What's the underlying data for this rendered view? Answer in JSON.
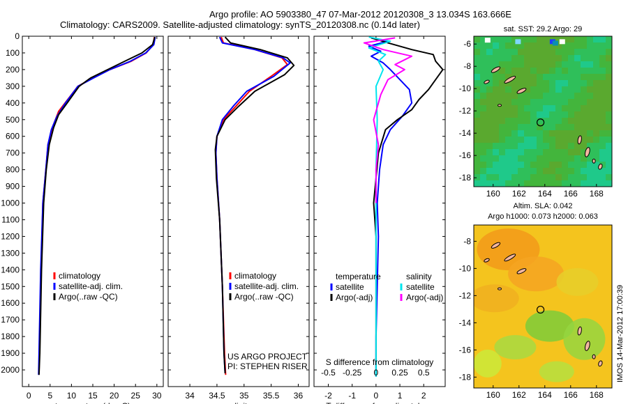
{
  "title": {
    "line1": "Argo profile: AO 5903380_47 07-Mar-2012 20120308_3 13.034S 163.666E",
    "line2": "Climatology: CARS2009. Satellite-adjusted climatology: synTS_20120308.nc (0.14d later)"
  },
  "colors": {
    "climatology": "#ff0000",
    "satellite": "#0000ff",
    "argo": "#000000",
    "sal_satellite": "#00e5ee",
    "sal_argo": "#ff00ff"
  },
  "chart_data": [
    {
      "type": "line",
      "xlabel": "temperature (deg C)",
      "xlim": [
        -1.5,
        31.5
      ],
      "xticks": [
        0,
        5,
        10,
        15,
        20,
        25,
        30
      ],
      "ylim": [
        2100,
        0
      ],
      "yticks": [
        0,
        100,
        200,
        300,
        400,
        500,
        600,
        700,
        800,
        900,
        1000,
        1100,
        1200,
        1300,
        1400,
        1500,
        1600,
        1700,
        1800,
        1900,
        2000
      ],
      "legend": [
        "climatology",
        "satellite-adj. clim.",
        "Argo(..raw -QC)"
      ],
      "legend_position": "center-left",
      "series": [
        {
          "name": "climatology",
          "color": "#ff0000",
          "x": [
            29.4,
            29.2,
            27.5,
            24,
            19,
            15,
            11.5,
            8.5,
            7,
            5.5,
            4.5,
            4,
            3.3,
            2.9,
            2.5,
            2.4
          ],
          "y": [
            5,
            50,
            100,
            150,
            200,
            250,
            300,
            400,
            450,
            550,
            650,
            800,
            1000,
            1400,
            1900,
            2020
          ]
        },
        {
          "name": "satellite-adj. clim.",
          "color": "#0000ff",
          "x": [
            29.6,
            29.3,
            27.4,
            23.8,
            19,
            15.2,
            11.5,
            8.6,
            6.6,
            5.3,
            4.5,
            4,
            3.3,
            2.8,
            2.4,
            2.3
          ],
          "y": [
            5,
            50,
            100,
            150,
            200,
            250,
            300,
            400,
            480,
            560,
            650,
            800,
            1000,
            1400,
            1900,
            2030
          ]
        },
        {
          "name": "Argo(..raw -QC)",
          "color": "#000000",
          "x": [
            29.5,
            29.0,
            26.5,
            22.5,
            18.5,
            14.5,
            11.8,
            9.0,
            7.0,
            5.8,
            4.8,
            4.1,
            3.5,
            3.0,
            2.6,
            2.4
          ],
          "y": [
            5,
            50,
            100,
            150,
            200,
            250,
            300,
            400,
            470,
            550,
            650,
            800,
            1000,
            1400,
            1900,
            2030
          ]
        }
      ]
    },
    {
      "type": "line",
      "xlabel": "salinity",
      "xlim": [
        33.6,
        36.2
      ],
      "xticks": [
        34,
        34.5,
        35,
        35.5,
        36
      ],
      "ylim": [
        2100,
        0
      ],
      "legend": [
        "climatology",
        "satellite-adj. clim.",
        "Argo(..raw -QC)"
      ],
      "legend_position": "center-right",
      "annotation": [
        "US ARGO PROJECT",
        "PI: STEPHEN RISER"
      ],
      "series": [
        {
          "name": "climatology",
          "color": "#ff0000",
          "x": [
            34.58,
            34.62,
            35.2,
            35.7,
            35.8,
            35.5,
            35.1,
            34.85,
            34.62,
            34.5,
            34.48,
            34.5,
            34.55,
            34.6,
            34.64,
            34.66
          ],
          "y": [
            5,
            40,
            80,
            130,
            170,
            240,
            330,
            420,
            500,
            600,
            700,
            850,
            1100,
            1500,
            1900,
            2030
          ]
        },
        {
          "name": "satellite-adj. clim.",
          "color": "#0000ff",
          "x": [
            34.55,
            34.6,
            35.2,
            35.72,
            35.85,
            35.55,
            35.05,
            34.8,
            34.6,
            34.5,
            34.48,
            34.5,
            34.55,
            34.6,
            34.63,
            34.65
          ],
          "y": [
            5,
            40,
            80,
            130,
            160,
            240,
            330,
            420,
            500,
            600,
            700,
            850,
            1100,
            1500,
            1900,
            2020
          ]
        },
        {
          "name": "Argo(..raw -QC)",
          "color": "#000000",
          "x": [
            34.65,
            34.75,
            35.3,
            35.8,
            35.92,
            35.75,
            35.2,
            34.9,
            34.65,
            34.5,
            34.47,
            34.49,
            34.55,
            34.6,
            34.63,
            34.65
          ],
          "y": [
            5,
            40,
            80,
            130,
            175,
            230,
            330,
            420,
            500,
            600,
            680,
            850,
            1100,
            1500,
            1900,
            2020
          ]
        }
      ]
    },
    {
      "type": "line",
      "xlabel": "T difference from climatology",
      "xlabel_top": "S difference from climatology",
      "xlim": [
        -2.6,
        2.9
      ],
      "xticks": [
        -2,
        -1,
        0,
        1,
        2
      ],
      "xticks_top": [
        "-0.5",
        "-0.25",
        "0",
        "0.25",
        "0.5"
      ],
      "ylim": [
        2100,
        0
      ],
      "legend_temperature": [
        "temperature",
        "satellite",
        "Argo(-adj)"
      ],
      "legend_salinity": [
        "salinity",
        "satellite",
        "Argo(-adj)"
      ],
      "series": [
        {
          "name": "satellite",
          "color": "#0000ff",
          "x": [
            -0.2,
            0.5,
            -0.3,
            0.2,
            -0.2,
            0.3,
            0.6,
            1.0,
            1.4,
            1.5,
            1.1,
            0.6,
            0.3,
            0.15,
            0.05,
            0.1,
            0.05,
            0,
            0
          ],
          "y": [
            10,
            30,
            60,
            90,
            120,
            160,
            200,
            260,
            320,
            400,
            480,
            560,
            650,
            800,
            1000,
            1200,
            1500,
            1800,
            2040
          ]
        },
        {
          "name": "Argo(-adj)",
          "color": "#000000",
          "x": [
            -0.2,
            0.5,
            1.5,
            2.4,
            2.5,
            2.8,
            2.5,
            2.2,
            1.8,
            1.5,
            0.9,
            0.4,
            0.1,
            0,
            -0.1,
            0,
            0,
            0
          ],
          "y": [
            10,
            40,
            80,
            110,
            150,
            200,
            260,
            320,
            380,
            440,
            500,
            560,
            700,
            850,
            1000,
            1200,
            1600,
            2040
          ]
        },
        {
          "name": "satellite",
          "color": "#00e5ee",
          "x": [
            -0.3,
            0.6,
            -0.3,
            0.4,
            0.1,
            0.3,
            0,
            0.05,
            0,
            0,
            0,
            0
          ],
          "y": [
            5,
            30,
            70,
            110,
            150,
            200,
            300,
            500,
            800,
            1200,
            1600,
            2040
          ]
        },
        {
          "name": "Argo(-adj)",
          "color": "#ff00ff",
          "x": [
            0.8,
            -0.5,
            0.3,
            1.5,
            0.8,
            1.2,
            0.5,
            0.2,
            -0.1,
            0.1,
            0,
            0
          ],
          "y": [
            10,
            40,
            80,
            120,
            170,
            200,
            260,
            350,
            500,
            650,
            800,
            1000
          ]
        }
      ]
    },
    {
      "type": "heatmap",
      "title": "sat. SST: 29.2 Argo: 29",
      "xticks": [
        160,
        162,
        164,
        166,
        168
      ],
      "yticks": [
        -6,
        -8,
        -10,
        -12,
        -14,
        -16,
        -18
      ],
      "xlim": [
        158.5,
        169.2
      ],
      "ylim": [
        -18.8,
        -5.3
      ],
      "marker": {
        "lon": 163.666,
        "lat": -13.034
      }
    },
    {
      "type": "heatmap",
      "title": "Altim. SLA: 0.042",
      "subtitle": "Argo h1000: 0.073 h2000: 0.063",
      "xticks": [
        160,
        162,
        164,
        166,
        168
      ],
      "yticks": [
        -8,
        -10,
        -12,
        -14,
        -16,
        -18
      ],
      "xlim": [
        158.5,
        169.2
      ],
      "ylim": [
        -18.8,
        -6.8
      ],
      "marker": {
        "lon": 163.666,
        "lat": -13.034
      }
    }
  ],
  "footer": {
    "label": "IMOS 14-Mar-2012 17:00:39"
  }
}
